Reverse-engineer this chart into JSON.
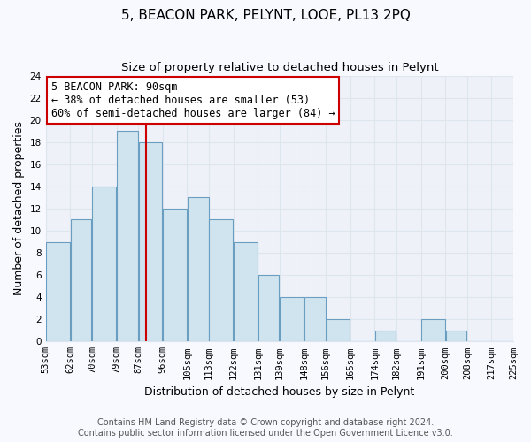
{
  "title": "5, BEACON PARK, PELYNT, LOOE, PL13 2PQ",
  "subtitle": "Size of property relative to detached houses in Pelynt",
  "xlabel": "Distribution of detached houses by size in Pelynt",
  "ylabel": "Number of detached properties",
  "bin_edges": [
    53,
    62,
    70,
    79,
    87,
    96,
    105,
    113,
    122,
    131,
    139,
    148,
    156,
    165,
    174,
    182,
    191,
    200,
    208,
    217,
    225
  ],
  "counts": [
    9,
    11,
    14,
    19,
    18,
    12,
    13,
    11,
    9,
    6,
    4,
    4,
    2,
    0,
    1,
    0,
    2,
    1,
    0,
    0
  ],
  "bar_color": "#d0e4f0",
  "bar_edge_color": "#6a9ec0",
  "property_value": 90,
  "red_line_x": 90,
  "annotation_title": "5 BEACON PARK: 90sqm",
  "annotation_line1": "← 38% of detached houses are smaller (53)",
  "annotation_line2": "60% of semi-detached houses are larger (84) →",
  "annotation_box_color": "#ffffff",
  "annotation_box_edge_color": "#cc0000",
  "red_line_color": "#cc0000",
  "ylim": [
    0,
    24
  ],
  "yticks": [
    0,
    2,
    4,
    6,
    8,
    10,
    12,
    14,
    16,
    18,
    20,
    22,
    24
  ],
  "tick_labels": [
    "53sqm",
    "62sqm",
    "70sqm",
    "79sqm",
    "87sqm",
    "96sqm",
    "105sqm",
    "113sqm",
    "122sqm",
    "131sqm",
    "139sqm",
    "148sqm",
    "156sqm",
    "165sqm",
    "174sqm",
    "182sqm",
    "191sqm",
    "200sqm",
    "208sqm",
    "217sqm",
    "225sqm"
  ],
  "footer_line1": "Contains HM Land Registry data © Crown copyright and database right 2024.",
  "footer_line2": "Contains public sector information licensed under the Open Government Licence v3.0.",
  "background_color": "#f8f9ff",
  "plot_bg_color": "#eef2f8",
  "grid_color": "#dde5ee",
  "title_fontsize": 11,
  "subtitle_fontsize": 9.5,
  "axis_label_fontsize": 9,
  "tick_fontsize": 7.5,
  "annotation_fontsize": 8.5,
  "footer_fontsize": 7
}
